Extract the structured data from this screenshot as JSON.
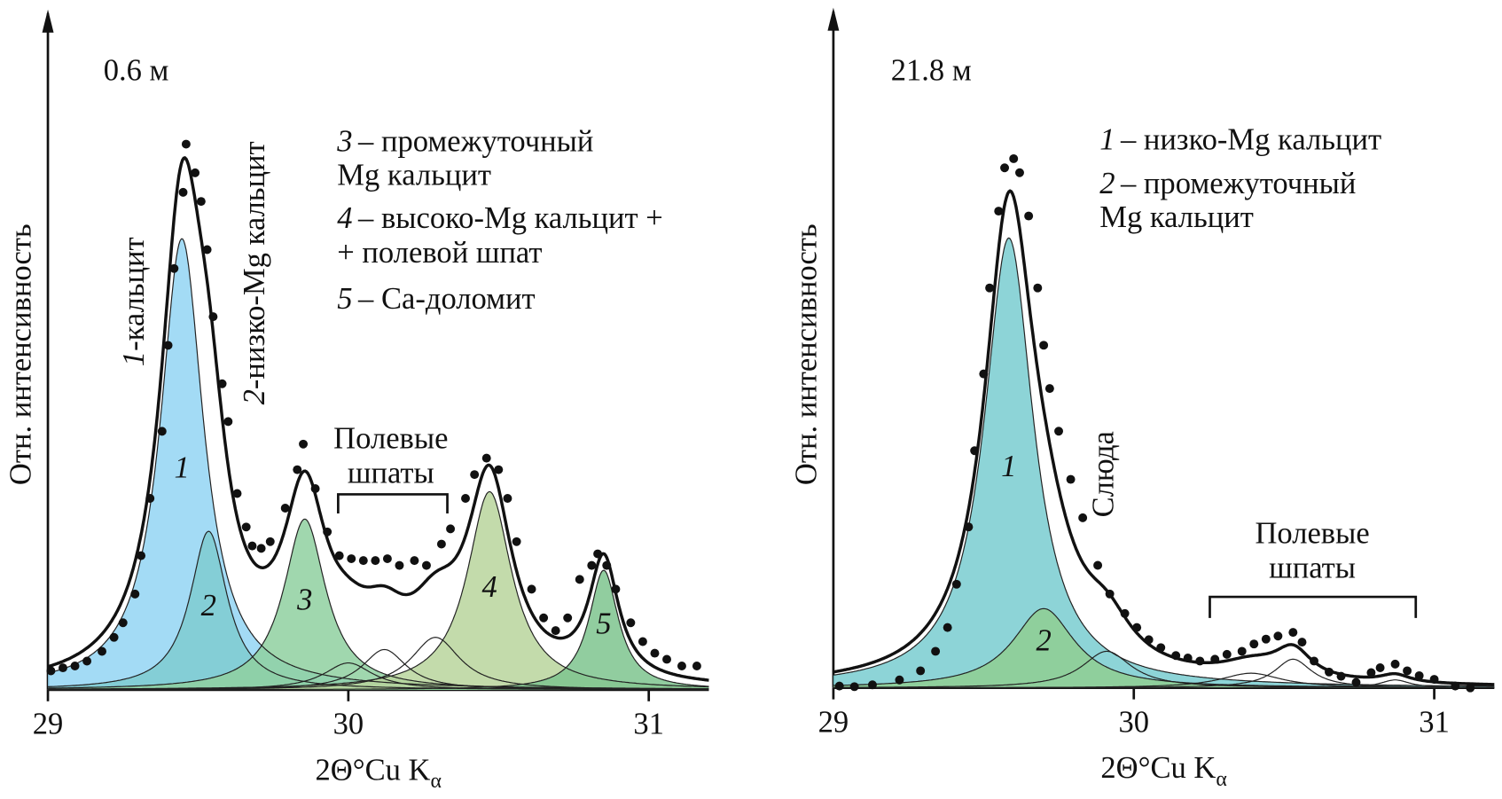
{
  "chart_data": [
    {
      "type": "xrd",
      "title": "0.6 м",
      "ylabel": "Отн. интенсивность",
      "xlabel": "2Θ°Cu K",
      "xlabel_sub": "α",
      "xlim": [
        29,
        31.2
      ],
      "ylim": [
        0,
        110
      ],
      "xticks": [
        29,
        30,
        31
      ],
      "peak_labels": [
        {
          "num": "1",
          "text": "-кальцит"
        },
        {
          "num": "2",
          "text": "-низко-Mg кальцит"
        }
      ],
      "group_label": [
        "Полевые",
        "шпаты"
      ],
      "legend": [
        {
          "num": "3",
          "lines": [
            "– промежуточный",
            "Mg кальцит"
          ]
        },
        {
          "num": "4",
          "lines": [
            "– высоко-Mg кальцит +",
            "+ полевой шпат"
          ]
        },
        {
          "num": "5",
          "lines": [
            "– Ca-доломит"
          ]
        }
      ],
      "components": [
        {
          "label": "1",
          "center": 29.446,
          "height": 74,
          "fwhm": 0.175,
          "color": "#93d5f3"
        },
        {
          "label": "2",
          "center": 29.535,
          "height": 26,
          "fwhm": 0.15,
          "color": "#7fcbd0"
        },
        {
          "label": "3",
          "center": 29.855,
          "height": 28,
          "fwhm": 0.17,
          "color": "#8fd0a0"
        },
        {
          "center": 30.0,
          "height": 4.4,
          "fwhm": 0.2
        },
        {
          "center": 30.12,
          "height": 6.6,
          "fwhm": 0.18
        },
        {
          "center": 30.29,
          "height": 8.6,
          "fwhm": 0.2
        },
        {
          "label": "4",
          "center": 30.47,
          "height": 32.5,
          "fwhm": 0.18,
          "color": "#b8d59c"
        },
        {
          "label": "5",
          "center": 30.85,
          "height": 19.6,
          "fwhm": 0.12,
          "color": "#7ec48e"
        }
      ],
      "points": {
        "x": [
          29.01,
          29.05,
          29.09,
          29.13,
          29.18,
          29.22,
          29.25,
          29.29,
          29.31,
          29.34,
          29.38,
          29.4,
          29.42,
          29.45,
          29.46,
          29.49,
          29.51,
          29.53,
          29.55,
          29.58,
          29.6,
          29.63,
          29.66,
          29.68,
          29.71,
          29.74,
          29.79,
          29.83,
          29.85,
          29.89,
          29.93,
          29.97,
          30.01,
          30.05,
          30.09,
          30.13,
          30.17,
          30.22,
          30.26,
          30.31,
          30.34,
          30.39,
          30.42,
          30.46,
          30.5,
          30.53,
          30.56,
          30.61,
          30.65,
          30.69,
          30.73,
          30.77,
          30.81,
          30.83,
          30.86,
          30.89,
          30.94,
          30.98,
          31.02,
          31.06,
          31.11,
          31.16
        ],
        "values": [
          3.1,
          3.6,
          3.9,
          4.7,
          6.3,
          8.6,
          11.0,
          15.7,
          22.0,
          31.4,
          42.4,
          56.5,
          69.1,
          81.6,
          89.5,
          84.8,
          80.1,
          72.2,
          61.2,
          50.2,
          44.0,
          32.2,
          26.7,
          23.6,
          23.2,
          24.3,
          29.8,
          36.1,
          40.3,
          33.0,
          25.9,
          22.0,
          21.5,
          21.2,
          21.2,
          21.5,
          20.4,
          21.2,
          20.4,
          23.9,
          26.4,
          31.4,
          35.3,
          38.0,
          36.1,
          31.4,
          24.3,
          16.5,
          11.8,
          9.7,
          11.8,
          18.1,
          20.4,
          22.3,
          20.4,
          16.5,
          11.0,
          7.9,
          6.0,
          5.0,
          3.9,
          3.9
        ]
      }
    },
    {
      "type": "xrd",
      "title": "21.8 м",
      "ylabel": "Отн. интенсивность",
      "xlabel": "2Θ°Cu K",
      "xlabel_sub": "α",
      "xlim": [
        29,
        31.2
      ],
      "ylim": [
        0,
        110
      ],
      "xticks": [
        29,
        30,
        31
      ],
      "peak_labels": [
        {
          "text": "Слюда"
        }
      ],
      "group_label": [
        "Полевые",
        "шпаты"
      ],
      "legend": [
        {
          "num": "1",
          "lines": [
            "– низко-Mg кальцит"
          ]
        },
        {
          "num": "2",
          "lines": [
            "– промежуточный",
            "Mg кальцит"
          ]
        }
      ],
      "components": [
        {
          "label": "1",
          "center": 29.584,
          "height": 73.8,
          "fwhm": 0.2,
          "color": "#79cdd0"
        },
        {
          "label": "2",
          "center": 29.7,
          "height": 13,
          "fwhm": 0.25,
          "color": "#8fce92"
        },
        {
          "center": 29.91,
          "height": 6.0,
          "fwhm": 0.2
        },
        {
          "center": 30.39,
          "height": 2.4,
          "fwhm": 0.25
        },
        {
          "center": 30.53,
          "height": 4.7,
          "fwhm": 0.15
        },
        {
          "center": 30.87,
          "height": 1.3,
          "fwhm": 0.12
        }
      ],
      "points": {
        "x": [
          29.02,
          29.07,
          29.13,
          29.22,
          29.29,
          29.34,
          29.38,
          29.41,
          29.45,
          29.47,
          29.5,
          29.52,
          29.55,
          29.57,
          29.6,
          29.62,
          29.65,
          29.68,
          29.7,
          29.72,
          29.75,
          29.79,
          29.83,
          29.88,
          29.92,
          29.97,
          30.01,
          30.05,
          30.09,
          30.14,
          30.18,
          30.22,
          30.27,
          30.31,
          30.36,
          30.4,
          30.44,
          30.48,
          30.53,
          30.56,
          30.6,
          30.65,
          30.69,
          30.74,
          30.79,
          30.82,
          30.87,
          30.91,
          30.95,
          31.0,
          31.07,
          31.12
        ],
        "values": [
          0.3,
          0.2,
          0.5,
          1.3,
          2.8,
          6.0,
          9.9,
          17.0,
          26.4,
          38.9,
          51.5,
          65.6,
          78.2,
          85.3,
          86.8,
          84.5,
          77.4,
          65.6,
          56.2,
          49.1,
          42.1,
          34.2,
          27.9,
          20.1,
          15.4,
          12.2,
          9.9,
          7.9,
          6.6,
          5.3,
          4.9,
          4.4,
          4.7,
          5.5,
          6.0,
          7.2,
          8.0,
          8.5,
          9.1,
          7.5,
          4.4,
          2.6,
          1.9,
          0.9,
          2.5,
          3.3,
          3.9,
          2.8,
          2.0,
          1.4,
          0.3,
          0
        ]
      }
    }
  ]
}
